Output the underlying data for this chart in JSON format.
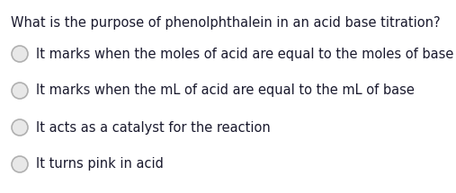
{
  "background_color": "#ffffff",
  "question": "What is the purpose of phenolphthalein in an acid base titration?",
  "question_color": "#1a1a2e",
  "question_fontsize": 10.5,
  "question_fontweight": "normal",
  "options": [
    "It marks when the moles of acid are equal to the moles of base",
    "It marks when the mL of acid are equal to the mL of base",
    "It acts as a catalyst for the reaction",
    "It turns pink in acid"
  ],
  "option_color": "#1a1a2e",
  "option_fontsize": 10.5,
  "circle_edge_color": "#b0b0b0",
  "circle_face_color": "#e8e8e8",
  "circle_linewidth": 1.2
}
